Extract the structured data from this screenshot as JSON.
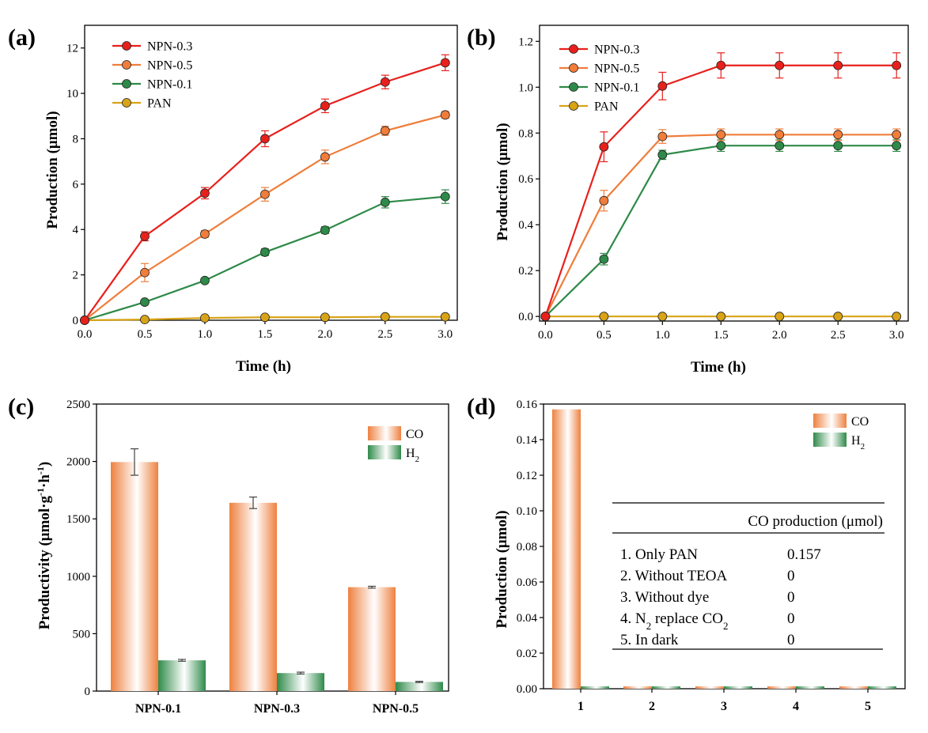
{
  "colors": {
    "NPN-0.3": "#e8201c",
    "NPN-0.5": "#f07d3a",
    "NPN-0.1": "#2e8a48",
    "PAN": "#d8a316",
    "CO": "#ee8140",
    "H2": "#2f8a4a"
  },
  "chart_data": [
    {
      "panel": "(a)",
      "type": "line",
      "xlabel": "Time (h)",
      "ylabel": "Production (μmol)",
      "xlim": [
        0,
        3.1
      ],
      "ylim": [
        0,
        13
      ],
      "xticks": [
        0.0,
        0.5,
        1.0,
        1.5,
        2.0,
        2.5,
        3.0
      ],
      "xtick_labels": [
        "0.0",
        "0.5",
        "1.0",
        "1.5",
        "2.0",
        "2.5",
        "3.0"
      ],
      "yticks": [
        0,
        2,
        4,
        6,
        8,
        10,
        12
      ],
      "ytick_labels": [
        "0",
        "2",
        "4",
        "6",
        "8",
        "10",
        "12"
      ],
      "x": [
        0,
        0.5,
        1.0,
        1.5,
        2.0,
        2.5,
        3.0
      ],
      "legend_position": "top-left",
      "series": [
        {
          "name": "NPN-0.3",
          "values": [
            0,
            3.7,
            5.6,
            8.0,
            9.45,
            10.5,
            11.35
          ],
          "errors": [
            0,
            0.2,
            0.25,
            0.35,
            0.3,
            0.3,
            0.35
          ]
        },
        {
          "name": "NPN-0.5",
          "values": [
            0,
            2.1,
            3.8,
            5.55,
            7.2,
            8.35,
            9.05
          ],
          "errors": [
            0,
            0.4,
            0.15,
            0.3,
            0.3,
            0.2,
            0.15
          ]
        },
        {
          "name": "NPN-0.1",
          "values": [
            0,
            0.8,
            1.75,
            3.0,
            3.97,
            5.2,
            5.45
          ],
          "errors": [
            0,
            0.1,
            0.1,
            0.15,
            0.15,
            0.25,
            0.3
          ]
        },
        {
          "name": "PAN",
          "values": [
            0,
            0.03,
            0.1,
            0.13,
            0.13,
            0.15,
            0.15
          ],
          "errors": [
            0,
            0.02,
            0.02,
            0.02,
            0.02,
            0.02,
            0.02
          ]
        }
      ]
    },
    {
      "panel": "(b)",
      "type": "line",
      "xlabel": "Time (h)",
      "ylabel": "Production (μmol)",
      "xlim": [
        -0.05,
        3.1
      ],
      "ylim": [
        -0.02,
        1.27
      ],
      "xticks": [
        0.0,
        0.5,
        1.0,
        1.5,
        2.0,
        2.5,
        3.0
      ],
      "xtick_labels": [
        "0.0",
        "0.5",
        "1.0",
        "1.5",
        "2.0",
        "2.5",
        "3.0"
      ],
      "yticks": [
        0.0,
        0.2,
        0.4,
        0.6,
        0.8,
        1.0,
        1.2
      ],
      "ytick_labels": [
        "0.0",
        "0.2",
        "0.4",
        "0.6",
        "0.8",
        "1.0",
        "1.2"
      ],
      "x": [
        0,
        0.5,
        1.0,
        1.5,
        2.0,
        2.5,
        3.0
      ],
      "legend_position": "top-left",
      "series": [
        {
          "name": "NPN-0.3",
          "values": [
            0,
            0.74,
            1.005,
            1.095,
            1.095,
            1.095,
            1.095
          ],
          "errors": [
            0,
            0.065,
            0.06,
            0.055,
            0.055,
            0.055,
            0.055
          ]
        },
        {
          "name": "NPN-0.5",
          "values": [
            0,
            0.505,
            0.785,
            0.793,
            0.793,
            0.793,
            0.793
          ],
          "errors": [
            0,
            0.045,
            0.03,
            0.025,
            0.025,
            0.025,
            0.025
          ]
        },
        {
          "name": "NPN-0.1",
          "values": [
            0,
            0.25,
            0.705,
            0.745,
            0.745,
            0.745,
            0.745
          ],
          "errors": [
            0,
            0.025,
            0.02,
            0.025,
            0.025,
            0.025,
            0.025
          ]
        },
        {
          "name": "PAN",
          "values": [
            0,
            0,
            0,
            0,
            0,
            0,
            0
          ],
          "errors": [
            0,
            0,
            0,
            0,
            0,
            0,
            0
          ]
        }
      ]
    },
    {
      "panel": "(c)",
      "type": "bar",
      "xlabel": "",
      "ylabel": "Productivity (μmol·g-1·h-1)",
      "ylim": [
        0,
        2500
      ],
      "yticks": [
        0,
        500,
        1000,
        1500,
        2000,
        2500
      ],
      "ytick_labels": [
        "0",
        "500",
        "1000",
        "1500",
        "2000",
        "2500"
      ],
      "categories": [
        "NPN-0.1",
        "NPN-0.3",
        "NPN-0.5"
      ],
      "legend_position": "top-right",
      "series": [
        {
          "name": "CO",
          "values": [
            1995,
            1640,
            905
          ],
          "errors": [
            115,
            50,
            8
          ]
        },
        {
          "name": "H2",
          "values": [
            268,
            157,
            80
          ],
          "errors": [
            8,
            8,
            5
          ]
        }
      ]
    },
    {
      "panel": "(d)",
      "type": "bar",
      "xlabel": "",
      "ylabel": "Production (μmol)",
      "ylim": [
        0,
        0.16
      ],
      "yticks": [
        0.0,
        0.02,
        0.04,
        0.06,
        0.08,
        0.1,
        0.12,
        0.14,
        0.16
      ],
      "ytick_labels": [
        "0.00",
        "0.02",
        "0.04",
        "0.06",
        "0.08",
        "0.10",
        "0.12",
        "0.14",
        "0.16"
      ],
      "categories": [
        "1",
        "2",
        "3",
        "4",
        "5"
      ],
      "legend_position": "top-right",
      "series": [
        {
          "name": "CO",
          "values": [
            0.157,
            0,
            0,
            0,
            0
          ]
        },
        {
          "name": "H2",
          "values": [
            0,
            0,
            0,
            0,
            0
          ]
        }
      ],
      "table": {
        "header": "CO production (μmol)",
        "rows": [
          {
            "label": "1. Only PAN",
            "value": "0.157"
          },
          {
            "label": "2. Without TEOA",
            "value": "0"
          },
          {
            "label": "3. Without dye",
            "value": "0"
          },
          {
            "label": "4. N2 replace CO2",
            "value": "0"
          },
          {
            "label": "5. In dark",
            "value": "0"
          }
        ]
      }
    }
  ]
}
